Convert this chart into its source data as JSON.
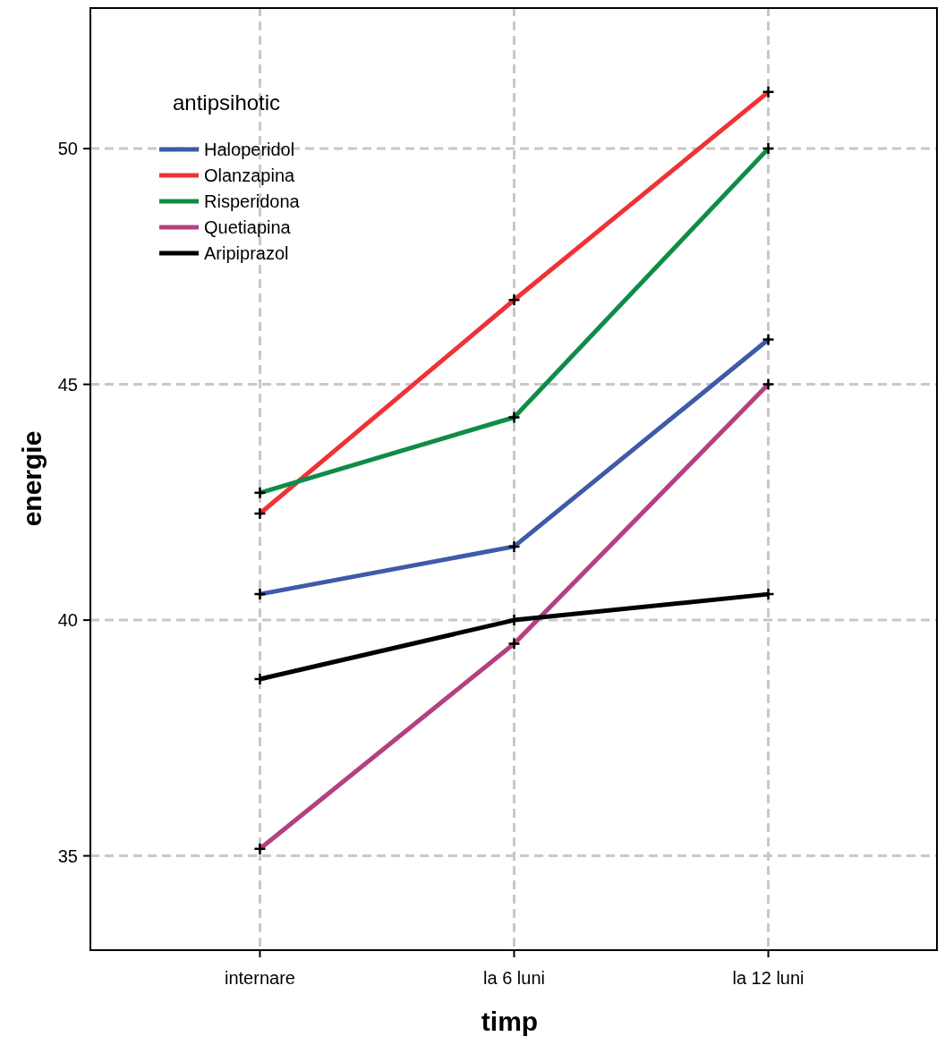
{
  "chart_data": {
    "type": "line",
    "xlabel": "timp",
    "ylabel": "energie",
    "categories": [
      "internare",
      "la 6 luni",
      "la 12 luni"
    ],
    "series": [
      {
        "name": "Haloperidol",
        "color": "#3f5aa8",
        "values": [
          40.55,
          41.56,
          45.95
        ]
      },
      {
        "name": "Olanzapina",
        "color": "#ee3338",
        "values": [
          42.26,
          46.79,
          51.2
        ]
      },
      {
        "name": "Risperidona",
        "color": "#0f8c47",
        "values": [
          42.7,
          44.3,
          50
        ]
      },
      {
        "name": "Quetiapina",
        "color": "#b5407f",
        "values": [
          35.15,
          39.5,
          45
        ]
      },
      {
        "name": "Aripiprazol",
        "color": "#000000",
        "values": [
          38.75,
          40,
          40.55
        ]
      }
    ],
    "legend_title": "antipsihotic",
    "legend": "top left",
    "ylim": [
      33,
      53
    ],
    "yticks": [
      35,
      40,
      45,
      50
    ],
    "grid": true,
    "marker": "cross",
    "line_style": "solid"
  }
}
